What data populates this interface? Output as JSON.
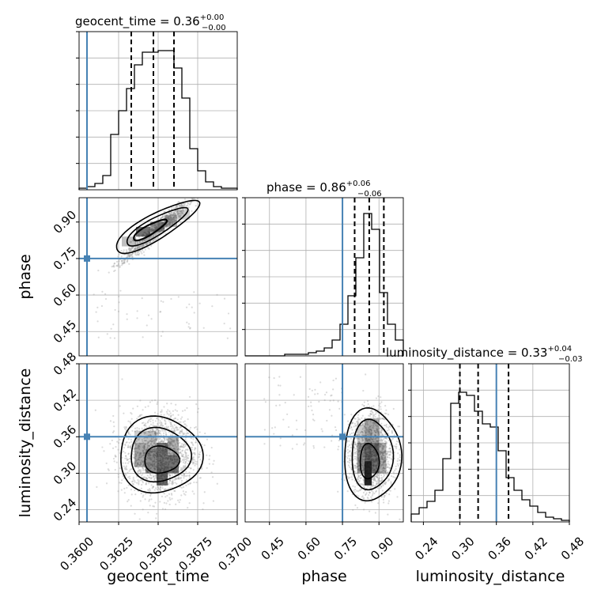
{
  "chart_data": {
    "type": "corner",
    "grid": true,
    "colors": {
      "truth": "#4682b4",
      "hist": "#000000",
      "sample": "#999999"
    },
    "parameters": [
      {
        "name": "geocent_time",
        "range": [
          0.36,
          0.37
        ],
        "truth": 0.3605,
        "ticks": [
          "0.3600",
          "0.3625",
          "0.3650",
          "0.3675",
          "0.3700"
        ],
        "tick_values": [
          0.36,
          0.3625,
          0.365,
          0.3675,
          0.37
        ],
        "title": {
          "text": "geocent_time = 0.36",
          "sup": "+0.00",
          "sub": "−0.00"
        },
        "quantiles": [
          0.3633,
          0.3647,
          0.366
        ],
        "hist": [
          0.01,
          0.02,
          0.04,
          0.09,
          0.35,
          0.5,
          0.64,
          0.79,
          0.87,
          0.87,
          0.88,
          0.88,
          0.77,
          0.58,
          0.26,
          0.12,
          0.05,
          0.02,
          0.01,
          0.01
        ]
      },
      {
        "name": "phase",
        "range": [
          0.35,
          1.0
        ],
        "truth": 0.75,
        "ticks": [
          "0.45",
          "0.60",
          "0.75",
          "0.90"
        ],
        "tick_values": [
          0.45,
          0.6,
          0.75,
          0.9
        ],
        "title": {
          "text": "phase = 0.86",
          "sup": "+0.06",
          "sub": "−0.06"
        },
        "quantiles": [
          0.8,
          0.86,
          0.92
        ],
        "hist": [
          0,
          0,
          0,
          0,
          0,
          0.01,
          0.01,
          0.01,
          0.02,
          0.03,
          0.05,
          0.1,
          0.2,
          0.38,
          0.62,
          0.9,
          0.8,
          0.4,
          0.2,
          0.1
        ]
      },
      {
        "name": "luminosity_distance",
        "range": [
          0.22,
          0.48
        ],
        "truth": 0.36,
        "ticks": [
          "0.24",
          "0.30",
          "0.36",
          "0.42",
          "0.48"
        ],
        "tick_values": [
          0.24,
          0.3,
          0.36,
          0.42,
          0.48
        ],
        "title": {
          "text": "luminosity_distance = 0.33",
          "sup": "+0.04",
          "sub": "−0.03"
        },
        "quantiles": [
          0.3,
          0.33,
          0.38
        ],
        "hist": [
          0.05,
          0.09,
          0.13,
          0.2,
          0.4,
          0.75,
          0.82,
          0.8,
          0.7,
          0.62,
          0.6,
          0.45,
          0.28,
          0.2,
          0.14,
          0.1,
          0.06,
          0.03,
          0.02,
          0.01
        ]
      }
    ]
  }
}
